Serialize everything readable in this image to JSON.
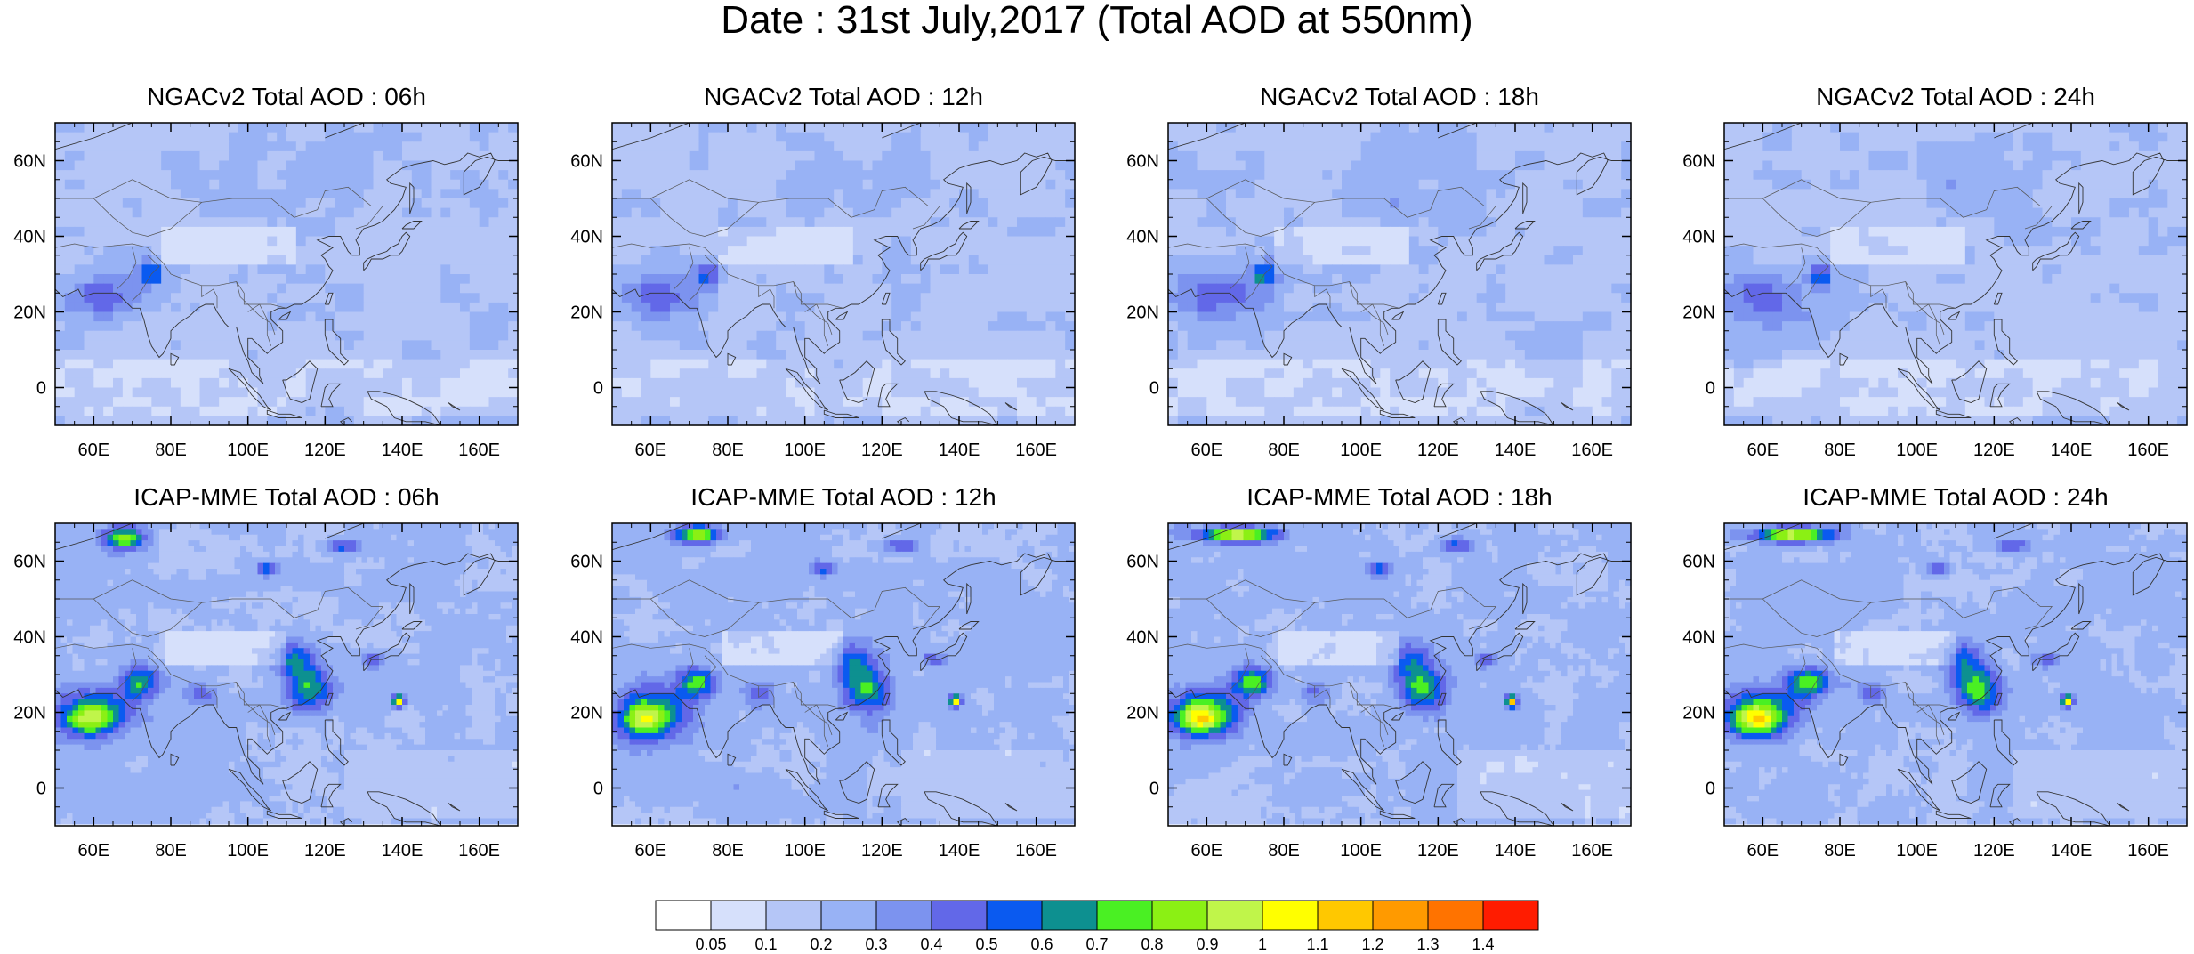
{
  "title": "Date : 31st July,2017 (Total AOD at 550nm)",
  "panels": [
    {
      "model": "NGACv2",
      "title": "NGACv2 Total AOD : 06h"
    },
    {
      "model": "NGACv2",
      "title": "NGACv2 Total AOD : 12h"
    },
    {
      "model": "NGACv2",
      "title": "NGACv2 Total AOD : 18h"
    },
    {
      "model": "NGACv2",
      "title": "NGACv2 Total AOD : 24h"
    },
    {
      "model": "ICAP-MME",
      "title": "ICAP-MME Total AOD : 06h"
    },
    {
      "model": "ICAP-MME",
      "title": "ICAP-MME Total AOD : 12h"
    },
    {
      "model": "ICAP-MME",
      "title": "ICAP-MME Total AOD : 18h"
    },
    {
      "model": "ICAP-MME",
      "title": "ICAP-MME Total AOD : 24h"
    }
  ],
  "map": {
    "lon_range": [
      50,
      170
    ],
    "lat_range": [
      -10,
      70
    ],
    "lon_ticks": [
      {
        "value": 60,
        "label": "60E"
      },
      {
        "value": 80,
        "label": "80E"
      },
      {
        "value": 100,
        "label": "100E"
      },
      {
        "value": 120,
        "label": "120E"
      },
      {
        "value": 140,
        "label": "140E"
      },
      {
        "value": 160,
        "label": "160E"
      }
    ],
    "lat_ticks": [
      {
        "value": 60,
        "label": "60N"
      },
      {
        "value": 40,
        "label": "40N"
      },
      {
        "value": 20,
        "label": "20N"
      },
      {
        "value": 0,
        "label": "0"
      }
    ]
  },
  "colorbar": {
    "colors": [
      "#ffffff",
      "#d6e0fb",
      "#b5c6f7",
      "#98b2f5",
      "#7c93ef",
      "#6268e8",
      "#0a5af0",
      "#0d9090",
      "#4af023",
      "#8bf014",
      "#c0f54a",
      "#ffff00",
      "#ffc800",
      "#ff9a00",
      "#ff7300",
      "#ff1c00"
    ],
    "labels": [
      "0.05",
      "0.1",
      "0.2",
      "0.3",
      "0.4",
      "0.5",
      "0.6",
      "0.7",
      "0.8",
      "0.9",
      "1",
      "1.1",
      "1.2",
      "1.3",
      "1.4"
    ]
  }
}
